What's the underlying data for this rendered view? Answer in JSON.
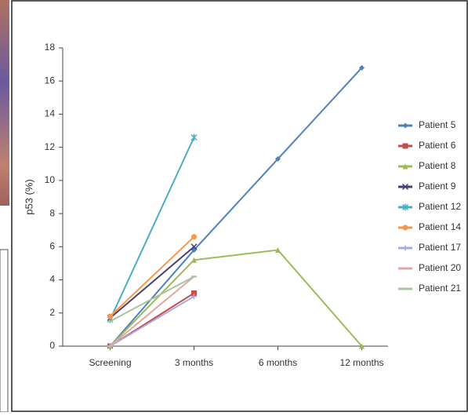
{
  "chart_data": {
    "type": "line",
    "y_label": "p53 (%)",
    "categories": [
      "Screening",
      "3 months",
      "6 months",
      "12 months"
    ],
    "ylim": [
      0,
      18
    ],
    "yticks": [
      0,
      2,
      4,
      6,
      8,
      10,
      12,
      14,
      16,
      18
    ],
    "grid": false,
    "legend": "right",
    "series": [
      {
        "name": "Patient 5",
        "color": "#4f81bd",
        "marker": "diamond",
        "values": [
          0,
          5.8,
          11.3,
          16.8
        ]
      },
      {
        "name": "Patient 6",
        "color": "#c0504d",
        "marker": "square",
        "values": [
          0,
          3.2,
          null,
          null
        ]
      },
      {
        "name": "Patient 8",
        "color": "#9bbb59",
        "marker": "triangle",
        "values": [
          0,
          5.2,
          5.8,
          0
        ]
      },
      {
        "name": "Patient 9",
        "color": "#4b3f72",
        "marker": "x",
        "values": [
          1.7,
          6.0,
          null,
          null
        ]
      },
      {
        "name": "Patient 12",
        "color": "#4bacc6",
        "marker": "star",
        "values": [
          1.6,
          12.6,
          null,
          null
        ]
      },
      {
        "name": "Patient 14",
        "color": "#f79646",
        "marker": "circle",
        "values": [
          1.8,
          6.6,
          null,
          null
        ]
      },
      {
        "name": "Patient 17",
        "color": "#a9a9e6",
        "marker": "plus",
        "values": [
          0,
          3.0,
          null,
          null
        ]
      },
      {
        "name": "Patient 20",
        "color": "#e6a5a5",
        "marker": "dash",
        "values": [
          0,
          4.2,
          null,
          null
        ]
      },
      {
        "name": "Patient 21",
        "color": "#a9c4a0",
        "marker": "dash",
        "values": [
          1.5,
          4.2,
          null,
          null
        ]
      }
    ]
  }
}
